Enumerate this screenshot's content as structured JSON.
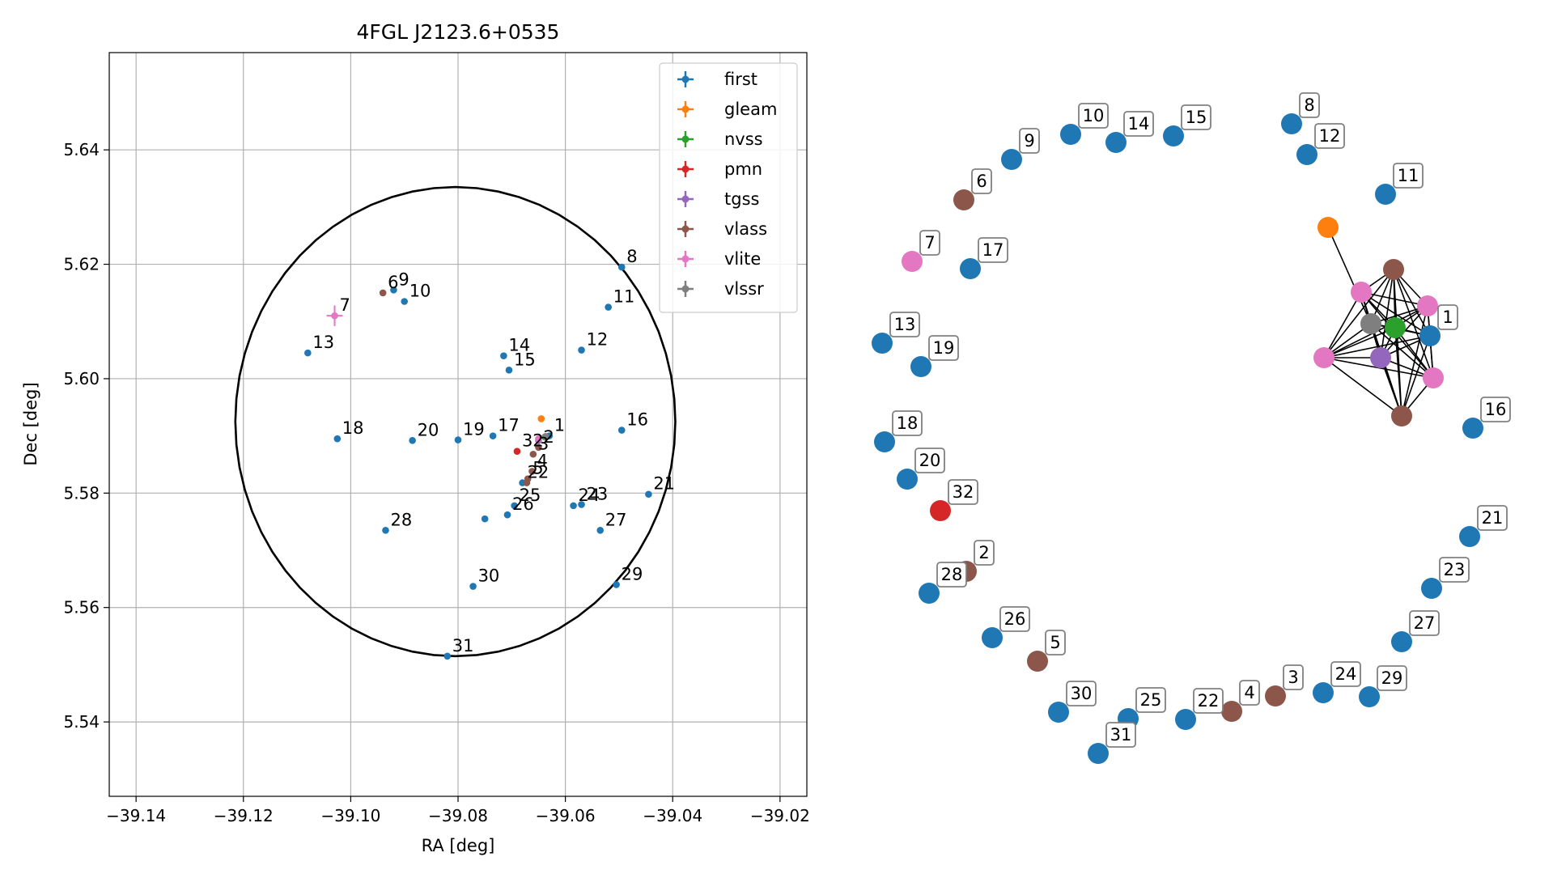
{
  "chart_data": [
    {
      "type": "scatter",
      "title": "4FGL J2123.6+0535",
      "xlabel": "RA [deg]",
      "ylabel": "Dec [deg]",
      "xlim": [
        -39.145,
        -39.015
      ],
      "ylim": [
        5.527,
        5.657
      ],
      "grid": true,
      "legend_position": "top-right",
      "x_ticks": [
        -39.14,
        -39.12,
        -39.1,
        -39.08,
        -39.06,
        -39.04,
        -39.02
      ],
      "x_tick_labels": [
        "−39.14",
        "−39.12",
        "−39.10",
        "−39.08",
        "−39.06",
        "−39.04",
        "−39.02"
      ],
      "y_ticks": [
        5.54,
        5.56,
        5.58,
        5.6,
        5.62,
        5.64
      ],
      "y_tick_labels": [
        "5.54",
        "5.56",
        "5.58",
        "5.60",
        "5.62",
        "5.64"
      ],
      "circle": {
        "ra": -39.0805,
        "dec": 5.5925,
        "radius": 0.041
      },
      "series": [
        {
          "name": "first",
          "color": "#1f77b4",
          "points": [
            {
              "label": "8",
              "x": -39.0495,
              "y": 5.6195
            },
            {
              "label": "9",
              "x": -39.092,
              "y": 5.6155
            },
            {
              "label": "10",
              "x": -39.09,
              "y": 5.6135
            },
            {
              "label": "11",
              "x": -39.052,
              "y": 5.6125
            },
            {
              "label": "12",
              "x": -39.057,
              "y": 5.605
            },
            {
              "label": "13",
              "x": -39.108,
              "y": 5.6045
            },
            {
              "label": "14",
              "x": -39.0715,
              "y": 5.604
            },
            {
              "label": "15",
              "x": -39.0705,
              "y": 5.6015
            },
            {
              "label": "16",
              "x": -39.0495,
              "y": 5.591
            },
            {
              "label": "17",
              "x": -39.0735,
              "y": 5.59
            },
            {
              "label": "18",
              "x": -39.1025,
              "y": 5.5895
            },
            {
              "label": "19",
              "x": -39.08,
              "y": 5.5893
            },
            {
              "label": "20",
              "x": -39.0885,
              "y": 5.5892
            },
            {
              "label": "21",
              "x": -39.0445,
              "y": 5.5798
            },
            {
              "label": "22",
              "x": -39.068,
              "y": 5.5818
            },
            {
              "label": "23",
              "x": -39.057,
              "y": 5.578
            },
            {
              "label": "24",
              "x": -39.0585,
              "y": 5.5778
            },
            {
              "label": "25",
              "x": -39.0695,
              "y": 5.5778
            },
            {
              "label": "26",
              "x": -39.0708,
              "y": 5.5762
            },
            {
              "label": "27",
              "x": -39.0535,
              "y": 5.5735
            },
            {
              "label": "28",
              "x": -39.0935,
              "y": 5.5735
            },
            {
              "label": "29",
              "x": -39.0505,
              "y": 5.564
            },
            {
              "label": "30",
              "x": -39.0772,
              "y": 5.5637
            },
            {
              "label": "31",
              "x": -39.082,
              "y": 5.5515
            },
            {
              "label": "1",
              "x": -39.063,
              "y": 5.59
            },
            {
              "label": "",
              "x": -39.075,
              "y": 5.5755
            }
          ]
        },
        {
          "name": "gleam",
          "color": "#ff7f0e",
          "points": [
            {
              "label": "",
              "x": -39.0645,
              "y": 5.593
            }
          ]
        },
        {
          "name": "nvss",
          "color": "#2ca02c",
          "points": [
            {
              "label": "",
              "x": -39.0638,
              "y": 5.5898
            }
          ]
        },
        {
          "name": "pmn",
          "color": "#d62728",
          "points": [
            {
              "label": "32",
              "x": -39.069,
              "y": 5.5873
            }
          ]
        },
        {
          "name": "tgss",
          "color": "#9467bd",
          "points": [
            {
              "label": "",
              "x": -39.065,
              "y": 5.5892
            }
          ]
        },
        {
          "name": "vlass",
          "color": "#8c564b",
          "points": [
            {
              "label": "6",
              "x": -39.094,
              "y": 5.615
            },
            {
              "label": "2",
              "x": -39.065,
              "y": 5.588
            },
            {
              "label": "3",
              "x": -39.066,
              "y": 5.5868
            },
            {
              "label": "4",
              "x": -39.0662,
              "y": 5.5838
            },
            {
              "label": "5",
              "x": -39.067,
              "y": 5.5825
            },
            {
              "label": "",
              "x": -39.0672,
              "y": 5.5818
            }
          ]
        },
        {
          "name": "vlite",
          "color": "#e377c2",
          "points": [
            {
              "label": "7",
              "x": -39.103,
              "y": 5.611,
              "xerr": 0.0015,
              "yerr": 0.0018
            },
            {
              "label": "",
              "x": -39.065,
              "y": 5.5895
            }
          ]
        },
        {
          "name": "vlssr",
          "color": "#7f7f7f",
          "points": [
            {
              "label": "",
              "x": -39.0637,
              "y": 5.5899
            }
          ]
        }
      ]
    },
    {
      "type": "network",
      "nodes": [
        {
          "label": "8",
          "color": "#1f77b4"
        },
        {
          "label": "12",
          "color": "#1f77b4"
        },
        {
          "label": "10",
          "color": "#1f77b4"
        },
        {
          "label": "14",
          "color": "#1f77b4"
        },
        {
          "label": "15",
          "color": "#1f77b4"
        },
        {
          "label": "9",
          "color": "#1f77b4"
        },
        {
          "label": "6",
          "color": "#8c564b"
        },
        {
          "label": "11",
          "color": "#1f77b4"
        },
        {
          "label": "7",
          "color": "#e377c2"
        },
        {
          "label": "17",
          "color": "#1f77b4"
        },
        {
          "label": "13",
          "color": "#1f77b4"
        },
        {
          "label": "19",
          "color": "#1f77b4"
        },
        {
          "label": "18",
          "color": "#1f77b4"
        },
        {
          "label": "20",
          "color": "#1f77b4"
        },
        {
          "label": "32",
          "color": "#d62728"
        },
        {
          "label": "2",
          "color": "#8c564b"
        },
        {
          "label": "28",
          "color": "#1f77b4"
        },
        {
          "label": "26",
          "color": "#1f77b4"
        },
        {
          "label": "5",
          "color": "#8c564b"
        },
        {
          "label": "30",
          "color": "#1f77b4"
        },
        {
          "label": "25",
          "color": "#1f77b4"
        },
        {
          "label": "31",
          "color": "#1f77b4"
        },
        {
          "label": "22",
          "color": "#1f77b4"
        },
        {
          "label": "4",
          "color": "#8c564b"
        },
        {
          "label": "3",
          "color": "#8c564b"
        },
        {
          "label": "24",
          "color": "#1f77b4"
        },
        {
          "label": "29",
          "color": "#1f77b4"
        },
        {
          "label": "27",
          "color": "#1f77b4"
        },
        {
          "label": "23",
          "color": "#1f77b4"
        },
        {
          "label": "21",
          "color": "#1f77b4"
        },
        {
          "label": "16",
          "color": "#1f77b4"
        },
        {
          "label": "1",
          "color": "#1f77b4"
        },
        {
          "label": "",
          "color": "#ff7f0e"
        },
        {
          "label": "",
          "color": "#2ca02c"
        },
        {
          "label": "",
          "color": "#9467bd"
        },
        {
          "label": "",
          "color": "#7f7f7f"
        },
        {
          "label": "",
          "color": "#8c564b"
        },
        {
          "label": "",
          "color": "#8c564b"
        },
        {
          "label": "",
          "color": "#e377c2"
        },
        {
          "label": "",
          "color": "#e377c2"
        },
        {
          "label": "",
          "color": "#e377c2"
        },
        {
          "label": "",
          "color": "#e377c2"
        }
      ]
    }
  ]
}
